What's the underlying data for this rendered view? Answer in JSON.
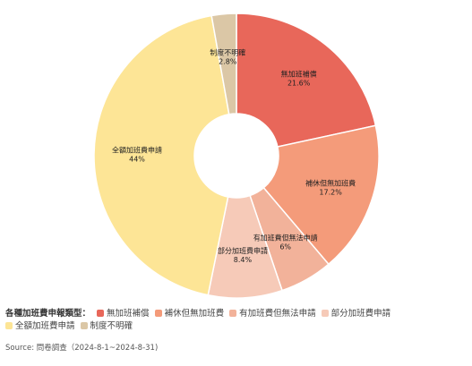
{
  "chart_data": {
    "type": "pie",
    "donut": true,
    "categories": [
      "無加班補償",
      "補休但無加班費",
      "有加班費但無法申請",
      "部分加班費申請",
      "全額加班費申請",
      "制度不明確"
    ],
    "values": [
      21.6,
      17.2,
      6,
      8.4,
      44,
      2.8
    ],
    "value_labels": [
      "21.6%",
      "17.2%",
      "6%",
      "8.4%",
      "44%",
      "2.8%"
    ],
    "colors": [
      "#e8675a",
      "#f49b7a",
      "#f2b29a",
      "#f6cab8",
      "#fde596",
      "#dbc7a6"
    ],
    "legend_title": "各種加班費申報類型：",
    "legend_position": "bottom-left",
    "start_angle_deg": 0,
    "direction": "clockwise"
  },
  "source": "Source: 問卷調查（2024-8-1~2024-8-31)"
}
